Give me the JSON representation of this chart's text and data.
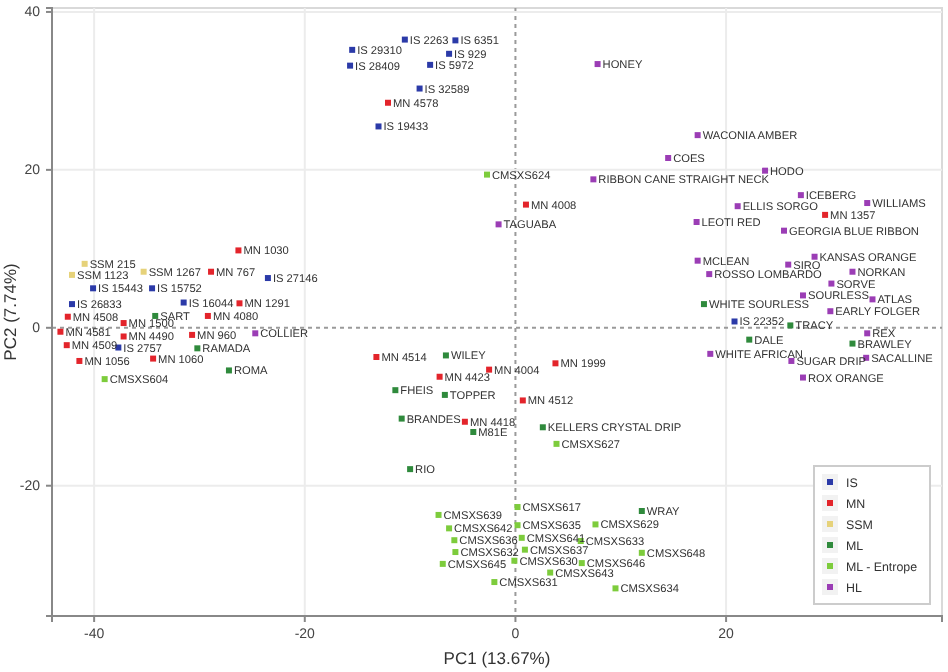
{
  "chart_data": {
    "type": "scatter",
    "xlabel": "PC1  (13.67%)",
    "ylabel": "PC2  (7.74%)",
    "xlim": [
      -44,
      40.5
    ],
    "ylim": [
      -36.5,
      40.5
    ],
    "xticks": [
      -40,
      -20,
      0,
      20
    ],
    "yticks": [
      -20,
      0,
      20,
      40
    ],
    "grid": true,
    "legend": "bottom right",
    "marker": "square",
    "series": [
      {
        "name": "IS",
        "color": "#2b3aa8",
        "x": [
          -10.5,
          -5.7,
          -15.5,
          -6.3,
          -15.7,
          -8.1,
          -9.1,
          -13.0,
          -23.5,
          -40.1,
          -34.5,
          -42.1,
          -31.5,
          -37.7,
          20.8
        ],
        "values": [
          36.5,
          36.4,
          35.2,
          34.7,
          33.2,
          33.3,
          30.3,
          25.5,
          6.3,
          5.0,
          5.0,
          3.0,
          3.2,
          -2.5,
          0.8
        ]
      },
      {
        "name": "MN",
        "color": "#e3242b",
        "x": [
          -12.1,
          -26.3,
          -28.9,
          -26.2,
          -42.5,
          -29.2,
          -37.2,
          -43.2,
          -42.6,
          -37.2,
          -41.4,
          -34.4,
          -30.7,
          -13.2,
          -7.2,
          -4.8,
          1.0,
          29.4,
          -2.5,
          3.8,
          0.7
        ],
        "values": [
          28.5,
          9.8,
          7.1,
          3.1,
          1.4,
          1.5,
          0.6,
          -0.5,
          -2.2,
          -1.1,
          -4.2,
          -3.9,
          -0.9,
          -3.7,
          -6.2,
          -11.9,
          15.6,
          14.3,
          -5.3,
          -4.5,
          -9.2
        ]
      },
      {
        "name": "SSM",
        "color": "#e6d27a",
        "x": [
          -40.9,
          -35.3,
          -42.1
        ],
        "values": [
          8.1,
          7.1,
          6.7
        ]
      },
      {
        "name": "ML",
        "color": "#2f8a3c",
        "x": [
          -34.2,
          -30.2,
          -27.2,
          -6.6,
          -11.4,
          -6.7,
          -10.8,
          -4.0,
          -10.0,
          17.9,
          26.1,
          22.2,
          32.0,
          2.6,
          12.0
        ],
        "values": [
          1.5,
          -2.6,
          -5.4,
          -3.5,
          -7.9,
          -8.5,
          -11.5,
          -13.2,
          -17.9,
          3.0,
          0.3,
          -1.5,
          -2.0,
          -12.6,
          -23.2
        ]
      },
      {
        "name": "ML - Entrope",
        "color": "#7dcc3c",
        "x": [
          -39.0,
          -2.7,
          3.9,
          -7.3,
          -6.3,
          -5.8,
          -5.7,
          -6.9,
          0.2,
          0.2,
          0.6,
          0.9,
          -0.1,
          -2.0,
          3.3,
          7.6,
          6.2,
          6.3,
          9.5,
          12.0
        ],
        "values": [
          -6.5,
          19.4,
          -14.7,
          -23.7,
          -25.4,
          -26.9,
          -28.4,
          -29.9,
          -22.7,
          -25.0,
          -26.6,
          -28.1,
          -29.5,
          -32.2,
          -31.0,
          -24.9,
          -27.0,
          -29.8,
          -33.0,
          -28.5
        ]
      },
      {
        "name": "HL",
        "color": "#9b3db5",
        "x": [
          7.8,
          17.3,
          14.5,
          7.4,
          23.7,
          27.1,
          33.4,
          21.1,
          -1.6,
          17.2,
          25.5,
          17.3,
          25.9,
          28.4,
          18.4,
          32.0,
          30.0,
          27.3,
          33.9,
          29.9,
          33.4,
          18.5,
          26.2,
          33.3,
          27.3,
          -24.7
        ],
        "values": [
          33.4,
          24.4,
          21.5,
          18.8,
          19.9,
          16.8,
          15.8,
          15.4,
          13.1,
          13.4,
          12.3,
          8.5,
          8.0,
          9.0,
          6.8,
          7.1,
          5.6,
          4.1,
          3.6,
          2.1,
          -0.7,
          -3.3,
          -4.2,
          -3.8,
          -6.3,
          -0.7
        ]
      }
    ],
    "annotations": [
      {
        "text": "IS 2263",
        "x": -10.5,
        "y": 36.5
      },
      {
        "text": "IS 6351",
        "x": -5.7,
        "y": 36.4
      },
      {
        "text": "IS 29310",
        "x": -15.5,
        "y": 35.2
      },
      {
        "text": "IS 929",
        "x": -6.3,
        "y": 34.7
      },
      {
        "text": "IS 28409",
        "x": -15.7,
        "y": 33.2
      },
      {
        "text": "IS 5972",
        "x": -8.1,
        "y": 33.3
      },
      {
        "text": "IS 32589",
        "x": -9.1,
        "y": 30.3
      },
      {
        "text": "IS 19433",
        "x": -13.0,
        "y": 25.5
      },
      {
        "text": "IS 27146",
        "x": -23.5,
        "y": 6.3
      },
      {
        "text": "IS 15443",
        "x": -40.1,
        "y": 5.0
      },
      {
        "text": "IS 15752",
        "x": -34.5,
        "y": 5.0
      },
      {
        "text": "IS 26833",
        "x": -42.1,
        "y": 3.0
      },
      {
        "text": "IS 16044",
        "x": -31.5,
        "y": 3.2
      },
      {
        "text": "IS 2757",
        "x": -37.7,
        "y": -2.5
      },
      {
        "text": "IS 22352",
        "x": 20.8,
        "y": 0.8
      },
      {
        "text": "MN 4578",
        "x": -12.1,
        "y": 28.5
      },
      {
        "text": "MN 1030",
        "x": -26.3,
        "y": 9.8
      },
      {
        "text": "MN 767",
        "x": -28.9,
        "y": 7.1
      },
      {
        "text": "MN 1291",
        "x": -26.2,
        "y": 3.1
      },
      {
        "text": "MN 4508",
        "x": -42.5,
        "y": 1.4
      },
      {
        "text": "MN 4080",
        "x": -29.2,
        "y": 1.5
      },
      {
        "text": "MN 1500",
        "x": -37.2,
        "y": 0.6
      },
      {
        "text": "MN 4581",
        "x": -43.2,
        "y": -0.5
      },
      {
        "text": "MN 4509",
        "x": -42.6,
        "y": -2.2
      },
      {
        "text": "MN 4490",
        "x": -37.2,
        "y": -1.1
      },
      {
        "text": "MN 1056",
        "x": -41.4,
        "y": -4.2
      },
      {
        "text": "MN 1060",
        "x": -34.4,
        "y": -3.9
      },
      {
        "text": "MN 960",
        "x": -30.7,
        "y": -0.9
      },
      {
        "text": "MN 4514",
        "x": -13.2,
        "y": -3.7
      },
      {
        "text": "MN 4423",
        "x": -7.2,
        "y": -6.2
      },
      {
        "text": "MN 4418",
        "x": -4.8,
        "y": -11.9
      },
      {
        "text": "MN 4008",
        "x": 1.0,
        "y": 15.6
      },
      {
        "text": "MN 1357",
        "x": 29.4,
        "y": 14.3
      },
      {
        "text": "MN 4004",
        "x": -2.5,
        "y": -5.3
      },
      {
        "text": "MN 1999",
        "x": 3.8,
        "y": -4.5
      },
      {
        "text": "MN 4512",
        "x": 0.7,
        "y": -9.2
      },
      {
        "text": "SSM 215",
        "x": -40.9,
        "y": 8.1
      },
      {
        "text": "SSM 1267",
        "x": -35.3,
        "y": 7.1
      },
      {
        "text": "SSM 1123",
        "x": -42.1,
        "y": 6.7
      },
      {
        "text": "SART",
        "x": -34.2,
        "y": 1.5
      },
      {
        "text": "RAMADA",
        "x": -30.2,
        "y": -2.6
      },
      {
        "text": "ROMA",
        "x": -27.2,
        "y": -5.4
      },
      {
        "text": "WILEY",
        "x": -6.6,
        "y": -3.5
      },
      {
        "text": "FHEIS",
        "x": -11.4,
        "y": -7.9
      },
      {
        "text": "TOPPER",
        "x": -6.7,
        "y": -8.5
      },
      {
        "text": "BRANDES",
        "x": -10.8,
        "y": -11.5
      },
      {
        "text": "M81E",
        "x": -4.0,
        "y": -13.2
      },
      {
        "text": "RIO",
        "x": -10.0,
        "y": -17.9
      },
      {
        "text": "WHITE SOURLESS",
        "x": 17.9,
        "y": 3.0
      },
      {
        "text": "TRACY",
        "x": 26.1,
        "y": 0.3
      },
      {
        "text": "DALE",
        "x": 22.2,
        "y": -1.5
      },
      {
        "text": "BRAWLEY",
        "x": 32.0,
        "y": -2.0
      },
      {
        "text": "KELLERS CRYSTAL DRIP",
        "x": 2.6,
        "y": -12.6
      },
      {
        "text": "WRAY",
        "x": 12.0,
        "y": -23.2
      },
      {
        "text": "CMSXS604",
        "x": -39.0,
        "y": -6.5
      },
      {
        "text": "CMSXS624",
        "x": -2.7,
        "y": 19.4
      },
      {
        "text": "CMSXS627",
        "x": 3.9,
        "y": -14.7
      },
      {
        "text": "CMSXS639",
        "x": -7.3,
        "y": -23.7
      },
      {
        "text": "CMSXS642",
        "x": -6.3,
        "y": -25.4
      },
      {
        "text": "CMSXS636",
        "x": -5.8,
        "y": -26.9
      },
      {
        "text": "CMSXS632",
        "x": -5.7,
        "y": -28.4
      },
      {
        "text": "CMSXS645",
        "x": -6.9,
        "y": -29.9
      },
      {
        "text": "CMSXS617",
        "x": 0.2,
        "y": -22.7
      },
      {
        "text": "CMSXS635",
        "x": 0.2,
        "y": -25.0
      },
      {
        "text": "CMSXS641",
        "x": 0.6,
        "y": -26.6
      },
      {
        "text": "CMSXS637",
        "x": 0.9,
        "y": -28.1
      },
      {
        "text": "CMSXS630",
        "x": -0.1,
        "y": -29.5
      },
      {
        "text": "CMSXS631",
        "x": -2.0,
        "y": -32.2
      },
      {
        "text": "CMSXS643",
        "x": 3.3,
        "y": -31.0
      },
      {
        "text": "CMSXS629",
        "x": 7.6,
        "y": -24.9
      },
      {
        "text": "CMSXS633",
        "x": 6.2,
        "y": -27.0
      },
      {
        "text": "CMSXS646",
        "x": 6.3,
        "y": -29.8
      },
      {
        "text": "CMSXS634",
        "x": 9.5,
        "y": -33.0
      },
      {
        "text": "CMSXS648",
        "x": 12.0,
        "y": -28.5
      },
      {
        "text": "HONEY",
        "x": 7.8,
        "y": 33.4
      },
      {
        "text": "WACONIA AMBER",
        "x": 17.3,
        "y": 24.4
      },
      {
        "text": "COES",
        "x": 14.5,
        "y": 21.5
      },
      {
        "text": "RIBBON CANE STRAIGHT NECK",
        "x": 7.4,
        "y": 18.8
      },
      {
        "text": "HODO",
        "x": 23.7,
        "y": 19.9
      },
      {
        "text": "ICEBERG",
        "x": 27.1,
        "y": 16.8
      },
      {
        "text": "WILLIAMS",
        "x": 33.4,
        "y": 15.8
      },
      {
        "text": "ELLIS SORGO",
        "x": 21.1,
        "y": 15.4
      },
      {
        "text": "TAGUABA",
        "x": -1.6,
        "y": 13.1
      },
      {
        "text": "LEOTI RED",
        "x": 17.2,
        "y": 13.4
      },
      {
        "text": "GEORGIA BLUE RIBBON",
        "x": 25.5,
        "y": 12.3
      },
      {
        "text": "MCLEAN",
        "x": 17.3,
        "y": 8.5
      },
      {
        "text": "SIRO",
        "x": 25.9,
        "y": 8.0
      },
      {
        "text": "KANSAS ORANGE",
        "x": 28.4,
        "y": 9.0
      },
      {
        "text": "ROSSO LOMBARDO",
        "x": 18.4,
        "y": 6.8
      },
      {
        "text": "NORKAN",
        "x": 32.0,
        "y": 7.1
      },
      {
        "text": "SORVE",
        "x": 30.0,
        "y": 5.6
      },
      {
        "text": "SOURLESS",
        "x": 27.3,
        "y": 4.1
      },
      {
        "text": "ATLAS",
        "x": 33.9,
        "y": 3.6
      },
      {
        "text": "EARLY FOLGER",
        "x": 29.9,
        "y": 2.1
      },
      {
        "text": "REX",
        "x": 33.4,
        "y": -0.7
      },
      {
        "text": "WHITE AFRICAN",
        "x": 18.5,
        "y": -3.3
      },
      {
        "text": "SUGAR DRIP",
        "x": 26.2,
        "y": -4.2
      },
      {
        "text": "SACALLINE",
        "x": 33.3,
        "y": -3.8
      },
      {
        "text": "ROX ORANGE",
        "x": 27.3,
        "y": -6.3
      },
      {
        "text": "COLLIER",
        "x": -24.7,
        "y": -0.7
      }
    ]
  }
}
